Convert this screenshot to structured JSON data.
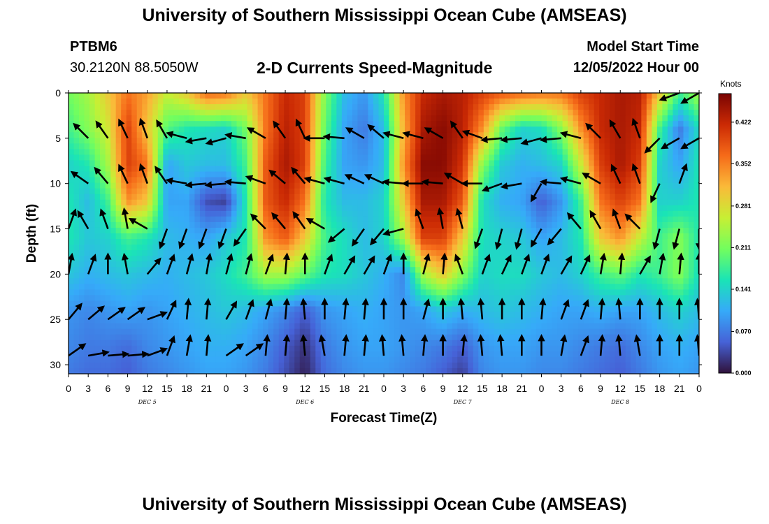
{
  "header": {
    "title": "University of Southern Mississippi Ocean Cube (AMSEAS)",
    "station_id": "PTBM6",
    "station_coords": "30.2120N  88.5050W",
    "chart_title": "2-D Currents Speed-Magnitude",
    "model_start_label": "Model Start Time",
    "model_start_value": "12/05/2022 Hour 00"
  },
  "footer": {
    "title": "University of Southern Mississippi Ocean Cube (AMSEAS)"
  },
  "colors": {
    "colormap": [
      "#30123b",
      "#4662d7",
      "#36aaf9",
      "#1ae4b6",
      "#72fe5e",
      "#c7ef34",
      "#faba39",
      "#f66b19",
      "#cb2a04",
      "#7a0403"
    ],
    "arrow": "#000000"
  },
  "chart_data": {
    "type": "heatmap",
    "title": "2-D Currents Speed-Magnitude",
    "xlabel": "Forecast Time(Z)",
    "ylabel": "Depth (ft)",
    "x_ticks": [
      "0",
      "3",
      "6",
      "9",
      "12",
      "15",
      "18",
      "21",
      "0",
      "3",
      "6",
      "9",
      "12",
      "15",
      "18",
      "21",
      "0",
      "3",
      "6",
      "9",
      "12",
      "15",
      "18",
      "21",
      "0",
      "3",
      "6",
      "9",
      "12",
      "15",
      "18",
      "21",
      "0"
    ],
    "x_range_hours": [
      0,
      96
    ],
    "date_labels": [
      {
        "label": "DEC 5",
        "hour": 12
      },
      {
        "label": "DEC 6",
        "hour": 36
      },
      {
        "label": "DEC 7",
        "hour": 60
      },
      {
        "label": "DEC 8",
        "hour": 84
      }
    ],
    "y_ticks": [
      0,
      5,
      10,
      15,
      20,
      25,
      30
    ],
    "y_range": [
      0,
      31
    ],
    "y_inverted": true,
    "colorbar": {
      "title": "Knots",
      "ticks": [
        "0.000",
        "0.070",
        "0.141",
        "0.211",
        "0.281",
        "0.352",
        "0.422"
      ],
      "range": [
        0,
        0.47
      ]
    },
    "speed_grid": {
      "hours": [
        0,
        3,
        6,
        9,
        12,
        15,
        18,
        21,
        24,
        27,
        30,
        33,
        36,
        39,
        42,
        45,
        48,
        51,
        54,
        57,
        60,
        63,
        66,
        69,
        72,
        75,
        78,
        81,
        84,
        87,
        90,
        93,
        96
      ],
      "depths": [
        0,
        4,
        8,
        12,
        16,
        20,
        24,
        28,
        31
      ],
      "values": [
        [
          0.21,
          0.24,
          0.3,
          0.36,
          0.33,
          0.26,
          0.3,
          0.37,
          0.36,
          0.3,
          0.36,
          0.42,
          0.4,
          0.22,
          0.12,
          0.09,
          0.16,
          0.34,
          0.42,
          0.44,
          0.43,
          0.4,
          0.38,
          0.37,
          0.36,
          0.36,
          0.4,
          0.42,
          0.44,
          0.43,
          0.3,
          0.18,
          0.24
        ],
        [
          0.18,
          0.22,
          0.27,
          0.4,
          0.3,
          0.19,
          0.16,
          0.15,
          0.14,
          0.21,
          0.36,
          0.43,
          0.4,
          0.2,
          0.1,
          0.07,
          0.12,
          0.32,
          0.44,
          0.46,
          0.43,
          0.34,
          0.2,
          0.14,
          0.15,
          0.22,
          0.34,
          0.42,
          0.44,
          0.42,
          0.18,
          0.07,
          0.15
        ],
        [
          0.14,
          0.16,
          0.24,
          0.4,
          0.36,
          0.1,
          0.13,
          0.12,
          0.12,
          0.18,
          0.38,
          0.44,
          0.4,
          0.18,
          0.1,
          0.09,
          0.12,
          0.34,
          0.46,
          0.46,
          0.41,
          0.22,
          0.13,
          0.11,
          0.12,
          0.14,
          0.26,
          0.4,
          0.44,
          0.4,
          0.14,
          0.1,
          0.16
        ],
        [
          0.16,
          0.12,
          0.18,
          0.34,
          0.3,
          0.1,
          0.1,
          0.04,
          0.03,
          0.16,
          0.38,
          0.42,
          0.36,
          0.16,
          0.12,
          0.12,
          0.14,
          0.3,
          0.44,
          0.44,
          0.38,
          0.15,
          0.11,
          0.1,
          0.05,
          0.09,
          0.18,
          0.36,
          0.4,
          0.36,
          0.14,
          0.14,
          0.16
        ],
        [
          0.16,
          0.13,
          0.14,
          0.18,
          0.16,
          0.12,
          0.11,
          0.1,
          0.13,
          0.16,
          0.34,
          0.38,
          0.3,
          0.18,
          0.15,
          0.12,
          0.14,
          0.24,
          0.4,
          0.4,
          0.3,
          0.15,
          0.14,
          0.13,
          0.1,
          0.12,
          0.16,
          0.3,
          0.34,
          0.26,
          0.18,
          0.22,
          0.16
        ],
        [
          0.13,
          0.11,
          0.12,
          0.13,
          0.12,
          0.11,
          0.12,
          0.13,
          0.15,
          0.18,
          0.24,
          0.24,
          0.2,
          0.16,
          0.15,
          0.13,
          0.11,
          0.08,
          0.24,
          0.3,
          0.22,
          0.14,
          0.15,
          0.15,
          0.13,
          0.12,
          0.14,
          0.18,
          0.2,
          0.16,
          0.18,
          0.22,
          0.15
        ],
        [
          0.09,
          0.08,
          0.09,
          0.1,
          0.09,
          0.1,
          0.11,
          0.12,
          0.13,
          0.12,
          0.1,
          0.08,
          0.05,
          0.09,
          0.1,
          0.11,
          0.1,
          0.09,
          0.1,
          0.13,
          0.11,
          0.12,
          0.13,
          0.12,
          0.11,
          0.1,
          0.1,
          0.11,
          0.1,
          0.1,
          0.12,
          0.14,
          0.12
        ],
        [
          0.08,
          0.07,
          0.07,
          0.06,
          0.08,
          0.09,
          0.1,
          0.11,
          0.11,
          0.1,
          0.08,
          0.05,
          0.02,
          0.07,
          0.09,
          0.1,
          0.1,
          0.09,
          0.08,
          0.07,
          0.05,
          0.09,
          0.1,
          0.1,
          0.09,
          0.09,
          0.08,
          0.07,
          0.06,
          0.08,
          0.1,
          0.11,
          0.1
        ],
        [
          0.07,
          0.06,
          0.06,
          0.05,
          0.07,
          0.08,
          0.09,
          0.1,
          0.1,
          0.09,
          0.07,
          0.04,
          0.01,
          0.06,
          0.08,
          0.09,
          0.09,
          0.08,
          0.07,
          0.05,
          0.03,
          0.08,
          0.09,
          0.09,
          0.08,
          0.08,
          0.07,
          0.06,
          0.05,
          0.07,
          0.09,
          0.1,
          0.09
        ]
      ]
    },
    "vectors": {
      "hours": [
        0,
        3,
        6,
        9,
        12,
        15,
        18,
        21,
        24,
        27,
        30,
        33,
        36,
        39,
        42,
        45,
        48,
        51,
        54,
        57,
        60,
        63,
        66,
        69,
        72,
        75,
        78,
        81,
        84,
        87,
        90,
        93,
        96
      ],
      "depths": [
        0,
        5,
        10,
        15,
        20,
        25,
        29
      ],
      "directions_deg": [
        [
          235,
          220,
          215,
          200,
          195,
          210,
          240,
          250,
          250,
          235,
          215,
          210,
          205,
          200,
          190,
          185,
          210,
          250,
          245,
          230,
          225,
          215,
          210,
          200,
          200,
          205,
          230,
          225,
          210,
          200,
          200,
          290,
          300
        ],
        [
          240,
          225,
          215,
          205,
          200,
          210,
          255,
          280,
          285,
          260,
          240,
          215,
          205,
          270,
          265,
          240,
          230,
          255,
          255,
          240,
          215,
          250,
          275,
          275,
          285,
          275,
          255,
          225,
          210,
          200,
          315,
          300,
          300
        ],
        [
          220,
          235,
          220,
          205,
          200,
          215,
          260,
          275,
          275,
          265,
          250,
          230,
          220,
          255,
          255,
          245,
          245,
          265,
          270,
          265,
          240,
          270,
          290,
          280,
          330,
          265,
          255,
          240,
          205,
          200,
          335,
          160,
          160
        ],
        [
          160,
          210,
          200,
          190,
          240,
          340,
          340,
          340,
          340,
          325,
          225,
          220,
          215,
          240,
          310,
          325,
          320,
          285,
          200,
          190,
          195,
          340,
          345,
          345,
          330,
          320,
          220,
          210,
          200,
          225,
          345,
          345,
          0
        ],
        [
          170,
          160,
          180,
          190,
          140,
          160,
          165,
          170,
          165,
          165,
          160,
          175,
          180,
          160,
          150,
          150,
          160,
          180,
          165,
          175,
          200,
          160,
          155,
          160,
          160,
          150,
          155,
          170,
          175,
          150,
          170,
          175,
          180
        ],
        [
          140,
          130,
          125,
          125,
          110,
          155,
          175,
          175,
          150,
          160,
          165,
          175,
          185,
          180,
          175,
          175,
          180,
          180,
          165,
          180,
          185,
          185,
          180,
          180,
          175,
          160,
          160,
          175,
          185,
          180,
          180,
          180,
          185
        ],
        [
          125,
          100,
          95,
          95,
          110,
          160,
          170,
          175,
          125,
          125,
          175,
          175,
          185,
          190,
          175,
          175,
          185,
          185,
          175,
          180,
          175,
          185,
          185,
          180,
          180,
          170,
          160,
          175,
          185,
          190,
          180,
          180,
          185
        ]
      ]
    }
  }
}
